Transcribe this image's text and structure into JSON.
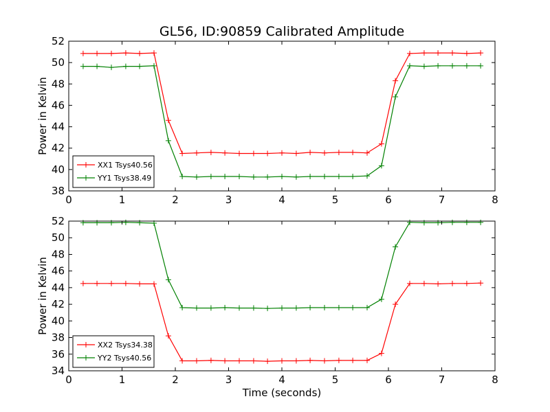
{
  "chart_data": {
    "title": "GL56, ID:90859 Calibrated Amplitude",
    "type": "line",
    "xlabel": "Time (seconds)",
    "x": [
      0.27,
      0.53,
      0.8,
      1.07,
      1.33,
      1.6,
      1.87,
      2.13,
      2.4,
      2.67,
      2.93,
      3.2,
      3.47,
      3.73,
      4.0,
      4.27,
      4.53,
      4.8,
      5.07,
      5.33,
      5.6,
      5.87,
      6.13,
      6.4,
      6.67,
      6.93,
      7.2,
      7.47,
      7.73
    ],
    "subplots": [
      {
        "ylabel": "Power in Kelvin",
        "xlim": [
          0,
          8
        ],
        "ylim": [
          38,
          52
        ],
        "xticks": [
          "0",
          "1",
          "2",
          "3",
          "4",
          "5",
          "6",
          "7",
          "8"
        ],
        "yticks": [
          "38",
          "40",
          "42",
          "44",
          "46",
          "48",
          "50",
          "52"
        ],
        "legend": "lower-left",
        "series": [
          {
            "name": "XX1 Tsys40.56",
            "color": "#ff0000",
            "values": [
              50.85,
              50.85,
              50.85,
              50.9,
              50.85,
              50.9,
              44.6,
              41.5,
              41.55,
              41.6,
              41.55,
              41.5,
              41.5,
              41.5,
              41.55,
              41.5,
              41.6,
              41.55,
              41.6,
              41.6,
              41.55,
              42.4,
              48.3,
              50.85,
              50.9,
              50.9,
              50.9,
              50.85,
              50.9
            ]
          },
          {
            "name": "YY1 Tsys38.49",
            "color": "#008000",
            "values": [
              49.65,
              49.65,
              49.55,
              49.65,
              49.65,
              49.7,
              42.7,
              39.35,
              39.3,
              39.35,
              39.35,
              39.35,
              39.3,
              39.3,
              39.35,
              39.3,
              39.35,
              39.35,
              39.35,
              39.35,
              39.4,
              40.35,
              46.8,
              49.7,
              49.65,
              49.7,
              49.7,
              49.7,
              49.7
            ]
          }
        ]
      },
      {
        "ylabel": "Power in Kelvin",
        "xlim": [
          0,
          8
        ],
        "ylim": [
          34,
          52
        ],
        "xticks": [
          "0",
          "1",
          "2",
          "3",
          "4",
          "5",
          "6",
          "7",
          "8"
        ],
        "yticks": [
          "34",
          "36",
          "38",
          "40",
          "42",
          "44",
          "46",
          "48",
          "50",
          "52"
        ],
        "legend": "lower-left",
        "series": [
          {
            "name": "XX2 Tsys34.38",
            "color": "#ff0000",
            "values": [
              44.5,
              44.5,
              44.5,
              44.5,
              44.45,
              44.45,
              38.2,
              35.2,
              35.2,
              35.25,
              35.2,
              35.2,
              35.2,
              35.15,
              35.2,
              35.2,
              35.25,
              35.2,
              35.25,
              35.25,
              35.25,
              36.1,
              42.0,
              44.5,
              44.5,
              44.45,
              44.5,
              44.5,
              44.55
            ]
          },
          {
            "name": "YY2 Tsys40.56",
            "color": "#008000",
            "values": [
              51.8,
              51.8,
              51.8,
              51.85,
              51.8,
              51.75,
              44.95,
              41.6,
              41.55,
              41.55,
              41.6,
              41.55,
              41.55,
              41.5,
              41.55,
              41.55,
              41.6,
              41.6,
              41.6,
              41.6,
              41.6,
              42.6,
              48.9,
              51.85,
              51.8,
              51.8,
              51.85,
              51.85,
              51.85
            ]
          }
        ]
      }
    ]
  }
}
